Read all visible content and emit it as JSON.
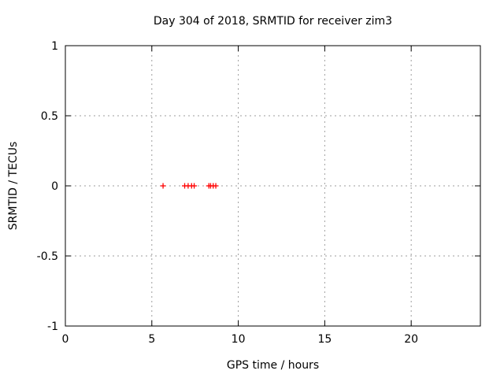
{
  "chart_data": {
    "type": "scatter",
    "title": "Day 304 of 2018, SRMTID for receiver zim3",
    "xlabel": "GPS time / hours",
    "ylabel": "SRMTID / TECUs",
    "xlim": [
      0,
      24
    ],
    "ylim": [
      -1,
      1
    ],
    "xticks": {
      "values": [
        0,
        5,
        10,
        15,
        20
      ],
      "labels": [
        "0",
        "5",
        "10",
        "15",
        "20"
      ]
    },
    "yticks": {
      "values": [
        1,
        0.5,
        0,
        -0.5,
        -1
      ],
      "labels": [
        "1",
        "0.5",
        "0",
        "-0.5",
        "-1"
      ]
    },
    "grid": true,
    "legend_position": "none",
    "marker": "plus",
    "marker_color": "#ff0000",
    "grid_color": "#9e9e9e",
    "axis_color": "#000000",
    "background_color": "#ffffff",
    "series": [
      {
        "name": "SRMTID",
        "x": [
          5.65,
          6.9,
          7.1,
          7.3,
          7.45,
          8.3,
          8.4,
          8.55,
          8.7
        ],
        "y": [
          0,
          0,
          0,
          0,
          0,
          0,
          0,
          0,
          0
        ]
      }
    ]
  }
}
